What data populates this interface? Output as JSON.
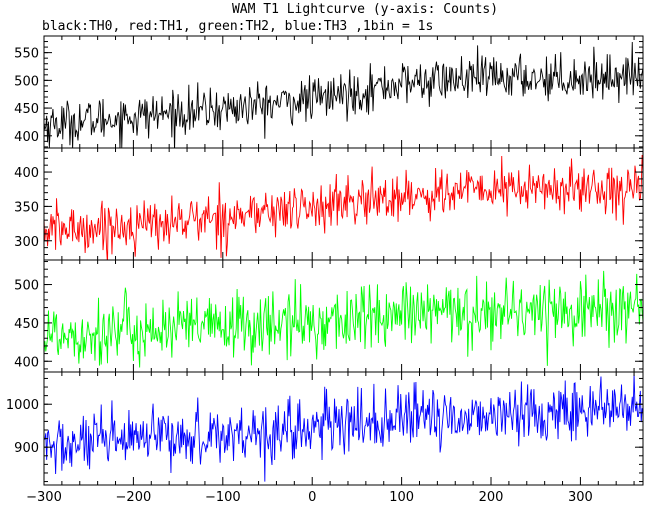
{
  "title": "WAM T1 Lightcurve (y-axis: Counts)",
  "subtitle": "black:TH0, red:TH1, green:TH2, blue:TH3 ,1bin = 1s",
  "chart_data": {
    "type": "line",
    "title": "WAM T1 Lightcurve (y-axis: Counts)",
    "subtitle": "black:TH0, red:TH1, green:TH2, blue:TH3 ,1bin = 1s",
    "ylabel": "Counts",
    "shared_x": {
      "xlim": [
        -300,
        370
      ],
      "ticks": [
        -300,
        -200,
        -100,
        0,
        100,
        200,
        300
      ],
      "tick_labels": [
        "−300",
        "−200",
        "−100",
        "0",
        "100",
        "200",
        "300"
      ],
      "bin_seconds": 1
    },
    "panels": [
      {
        "name": "TH0",
        "color": "#000000",
        "ylim": [
          378,
          580
        ],
        "yticks": [
          400,
          450,
          500,
          550
        ],
        "trend": {
          "x": [
            -300,
            -200,
            -100,
            0,
            100,
            200,
            300,
            370
          ],
          "y": [
            420,
            435,
            448,
            465,
            495,
            505,
            505,
            510
          ]
        },
        "noise_sd": 20
      },
      {
        "name": "TH1",
        "color": "#ff0000",
        "ylim": [
          272,
          435
        ],
        "yticks": [
          300,
          350,
          400
        ],
        "trend": {
          "x": [
            -300,
            -200,
            -100,
            0,
            100,
            200,
            300,
            370
          ],
          "y": [
            315,
            322,
            335,
            348,
            365,
            375,
            375,
            380
          ]
        },
        "noise_sd": 18
      },
      {
        "name": "TH2",
        "color": "#00ff00",
        "ylim": [
          386,
          532
        ],
        "yticks": [
          400,
          450,
          500
        ],
        "trend": {
          "x": [
            -300,
            -200,
            -100,
            0,
            100,
            200,
            300,
            370
          ],
          "y": [
            435,
            440,
            445,
            450,
            460,
            465,
            468,
            470
          ]
        },
        "noise_sd": 22
      },
      {
        "name": "TH3",
        "color": "#0000ff",
        "ylim": [
          812,
          1075
        ],
        "yticks": [
          900,
          1000
        ],
        "trend": {
          "x": [
            -300,
            -200,
            -100,
            0,
            100,
            200,
            300,
            370
          ],
          "y": [
            900,
            915,
            930,
            945,
            965,
            975,
            985,
            990
          ]
        },
        "noise_sd": 35
      }
    ]
  }
}
